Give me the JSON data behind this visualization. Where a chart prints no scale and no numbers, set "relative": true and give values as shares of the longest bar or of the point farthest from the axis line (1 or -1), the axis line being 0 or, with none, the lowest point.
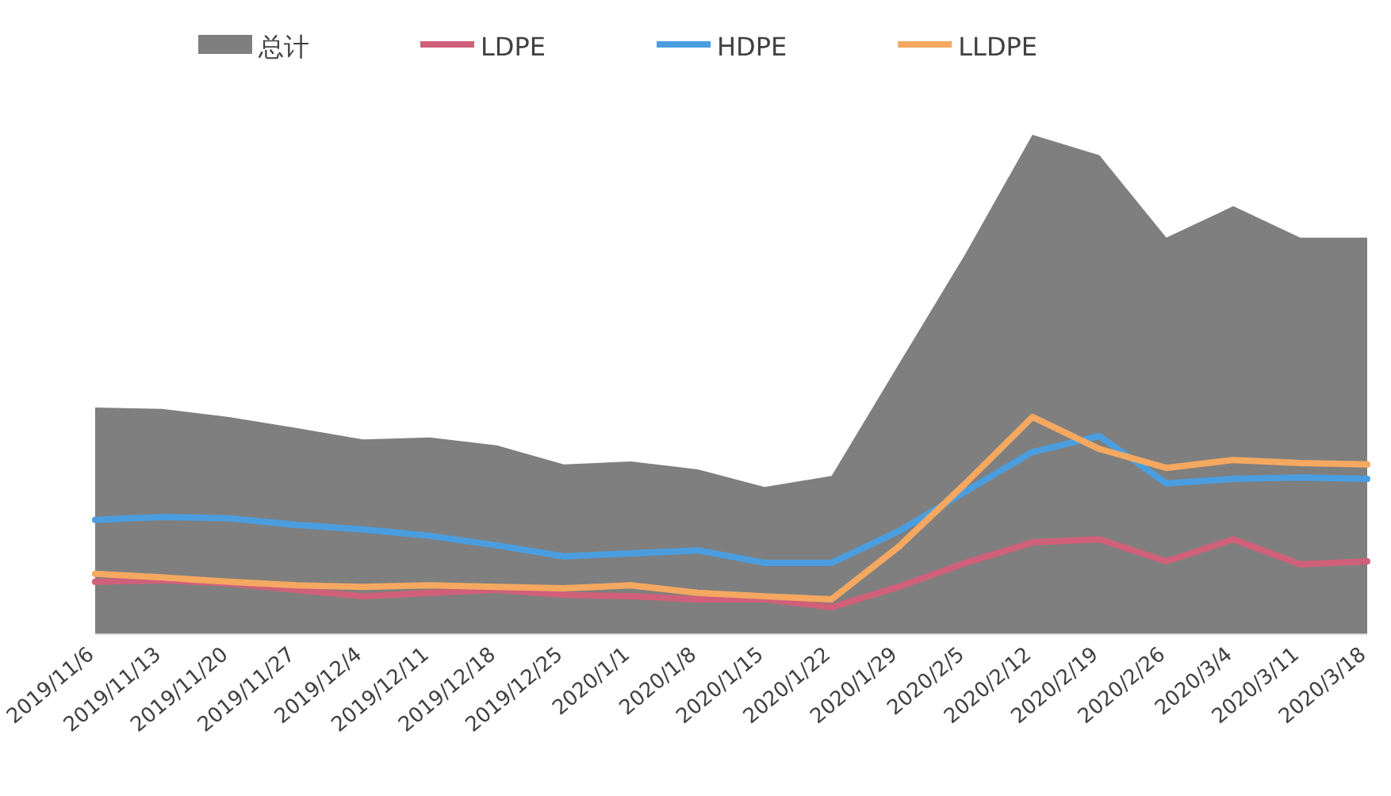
{
  "chart_data": {
    "type": "line",
    "relative": true,
    "legend": "top",
    "categories": [
      "2019/11/6",
      "2019/11/13",
      "2019/11/20",
      "2019/11/27",
      "2019/12/4",
      "2019/12/11",
      "2019/12/18",
      "2019/12/25",
      "2020/1/1",
      "2020/1/8",
      "2020/1/15",
      "2020/1/22",
      "2020/1/29",
      "2020/2/5",
      "2020/2/12",
      "2020/2/19",
      "2020/2/26",
      "2020/3/4",
      "2020/3/11",
      "2020/3/18"
    ],
    "series": [
      {
        "name": "总计",
        "type": "area",
        "color": "#7f7f7f",
        "values": [
          0.454,
          0.451,
          0.435,
          0.413,
          0.39,
          0.394,
          0.378,
          0.34,
          0.346,
          0.33,
          0.295,
          0.317,
          0.54,
          0.762,
          1,
          0.959,
          0.794,
          0.857,
          0.794,
          0.794
        ]
      },
      {
        "name": "LDPE",
        "color": "#d0607a",
        "values": [
          0.105,
          0.108,
          0.102,
          0.089,
          0.076,
          0.083,
          0.089,
          0.079,
          0.076,
          0.07,
          0.07,
          0.054,
          0.095,
          0.143,
          0.184,
          0.19,
          0.146,
          0.19,
          0.14,
          0.146
        ]
      },
      {
        "name": "HDPE",
        "color": "#4a9ee0",
        "values": [
          0.229,
          0.235,
          0.232,
          0.219,
          0.21,
          0.197,
          0.178,
          0.156,
          0.162,
          0.168,
          0.143,
          0.143,
          0.206,
          0.286,
          0.365,
          0.397,
          0.302,
          0.311,
          0.314,
          0.311
        ]
      },
      {
        "name": "LLDPE",
        "color": "#f5a860",
        "values": [
          0.121,
          0.114,
          0.105,
          0.098,
          0.095,
          0.098,
          0.095,
          0.092,
          0.098,
          0.083,
          0.076,
          0.07,
          0.175,
          0.302,
          0.435,
          0.371,
          0.333,
          0.349,
          0.343,
          0.34
        ]
      }
    ]
  }
}
